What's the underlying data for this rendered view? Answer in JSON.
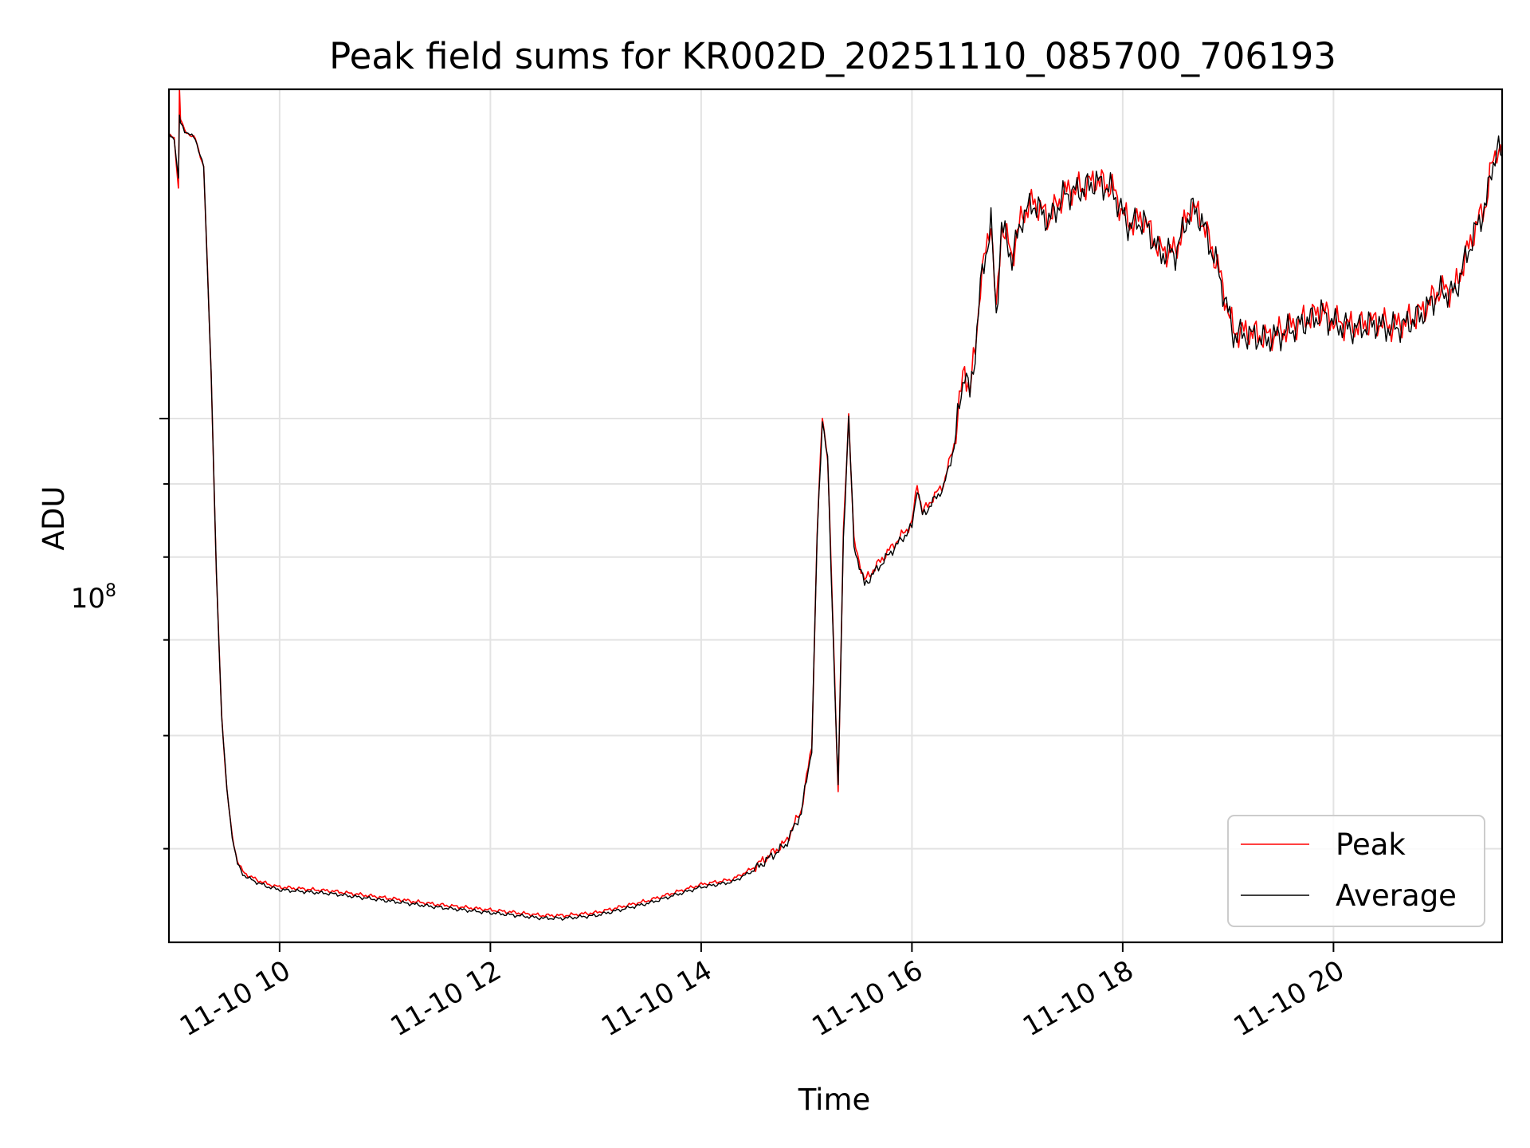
{
  "chart_data": {
    "type": "line",
    "title": "Peak field sums for KR002D_20251110_085700_706193",
    "xlabel": "Time",
    "ylabel": "ADU",
    "yscale": "log",
    "ylim": [
      43000000,
      170000000
    ],
    "xlim_hours": [
      8.95,
      21.6
    ],
    "x_unit": "hour of day 2025-11-10",
    "grid": true,
    "legend_position": "lower-right",
    "x_ticks": [
      {
        "value": 10,
        "label": "11-10 10"
      },
      {
        "value": 12,
        "label": "11-10 12"
      },
      {
        "value": 14,
        "label": "11-10 14"
      },
      {
        "value": 16,
        "label": "11-10 16"
      },
      {
        "value": 18,
        "label": "11-10 18"
      },
      {
        "value": 20,
        "label": "11-10 20"
      }
    ],
    "y_major_ticks": [
      {
        "value": 100000000,
        "label_base": "10",
        "label_exp": "8"
      }
    ],
    "y_minor_ticks": [
      50000000,
      60000000,
      70000000,
      80000000,
      90000000
    ],
    "series": [
      {
        "name": "Peak",
        "color": "#ff0000",
        "x": [
          8.95,
          9.0,
          9.04,
          9.05,
          9.06,
          9.1,
          9.2,
          9.28,
          9.35,
          9.4,
          9.45,
          9.5,
          9.55,
          9.6,
          9.65,
          9.7,
          9.8,
          9.9,
          10.0,
          10.5,
          11.0,
          11.5,
          12.0,
          12.5,
          12.7,
          13.0,
          13.5,
          14.0,
          14.3,
          14.5,
          14.8,
          14.95,
          15.05,
          15.1,
          15.15,
          15.2,
          15.25,
          15.3,
          15.35,
          15.4,
          15.45,
          15.55,
          15.7,
          16.0,
          16.05,
          16.1,
          16.3,
          16.4,
          16.5,
          16.55,
          16.6,
          16.65,
          16.75,
          16.8,
          16.85,
          16.95,
          17.05,
          17.15,
          17.3,
          17.45,
          17.6,
          17.75,
          17.9,
          18.05,
          18.2,
          18.35,
          18.5,
          18.65,
          18.75,
          18.9,
          19.05,
          19.2,
          19.35,
          19.5,
          19.7,
          19.9,
          20.0,
          20.2,
          20.4,
          20.55,
          20.7,
          20.85,
          21.0,
          21.15,
          21.3,
          21.45,
          21.5,
          21.55,
          21.6
        ],
        "y": [
          158000000,
          157000000,
          145000000,
          170000000,
          162000000,
          159000000,
          157000000,
          150000000,
          108000000,
          78000000,
          62000000,
          55000000,
          51000000,
          49000000,
          48200000,
          47900000,
          47500000,
          47200000,
          47000000,
          46700000,
          46200000,
          45700000,
          45300000,
          44900000,
          44900000,
          45100000,
          46000000,
          47200000,
          47600000,
          48500000,
          50500000,
          53200000,
          59000000,
          83000000,
          100500000,
          94000000,
          72000000,
          55000000,
          83000000,
          100800000,
          82000000,
          77000000,
          79500000,
          84500000,
          90000000,
          86000000,
          90000000,
          96000000,
          109000000,
          104000000,
          112000000,
          124000000,
          138000000,
          118000000,
          137000000,
          130000000,
          139000000,
          142000000,
          138000000,
          144000000,
          145000000,
          147000000,
          145000000,
          137000000,
          138000000,
          131000000,
          131000000,
          141000000,
          138000000,
          128000000,
          115000000,
          115000000,
          114000000,
          115000000,
          117000000,
          119000000,
          117000000,
          116000000,
          117000000,
          116000000,
          117000000,
          119000000,
          123000000,
          123000000,
          133000000,
          142000000,
          150000000,
          155000000,
          153000000
        ]
      },
      {
        "name": "Average",
        "color": "#000000",
        "x": [
          8.95,
          9.0,
          9.04,
          9.05,
          9.06,
          9.1,
          9.2,
          9.28,
          9.35,
          9.4,
          9.45,
          9.5,
          9.55,
          9.6,
          9.65,
          9.7,
          9.8,
          9.9,
          10.0,
          10.5,
          11.0,
          11.5,
          12.0,
          12.5,
          12.7,
          13.0,
          13.5,
          14.0,
          14.3,
          14.5,
          14.8,
          14.95,
          15.05,
          15.1,
          15.15,
          15.2,
          15.25,
          15.3,
          15.35,
          15.4,
          15.45,
          15.55,
          15.7,
          16.0,
          16.05,
          16.1,
          16.3,
          16.4,
          16.5,
          16.55,
          16.6,
          16.65,
          16.75,
          16.8,
          16.85,
          16.95,
          17.05,
          17.15,
          17.3,
          17.45,
          17.6,
          17.75,
          17.9,
          18.05,
          18.2,
          18.35,
          18.5,
          18.65,
          18.75,
          18.9,
          19.05,
          19.2,
          19.35,
          19.5,
          19.7,
          19.9,
          20.0,
          20.2,
          20.4,
          20.55,
          20.7,
          20.85,
          21.0,
          21.15,
          21.3,
          21.45,
          21.5,
          21.55,
          21.6
        ],
        "y": [
          158000000,
          157000000,
          147000000,
          163000000,
          161000000,
          159000000,
          157000000,
          150000000,
          108000000,
          78000000,
          62000000,
          55000000,
          51000000,
          48800000,
          48000000,
          47700000,
          47300000,
          47000000,
          46800000,
          46500000,
          46000000,
          45500000,
          45100000,
          44700000,
          44700000,
          44900000,
          45800000,
          47000000,
          47400000,
          48300000,
          50300000,
          53000000,
          58800000,
          82500000,
          100000000,
          93500000,
          71500000,
          55000000,
          82500000,
          100300000,
          81500000,
          76500000,
          79000000,
          84000000,
          89500000,
          85500000,
          89500000,
          95500000,
          108500000,
          103500000,
          111500000,
          123500000,
          137500000,
          117500000,
          136500000,
          129500000,
          138500000,
          141500000,
          137500000,
          143500000,
          144500000,
          146500000,
          144500000,
          136500000,
          137500000,
          130500000,
          130500000,
          140500000,
          137500000,
          127500000,
          114500000,
          114500000,
          113500000,
          114500000,
          116500000,
          118500000,
          116500000,
          115500000,
          116500000,
          115500000,
          116500000,
          118500000,
          122500000,
          122500000,
          132500000,
          141500000,
          149500000,
          154500000,
          152500000
        ]
      }
    ]
  }
}
